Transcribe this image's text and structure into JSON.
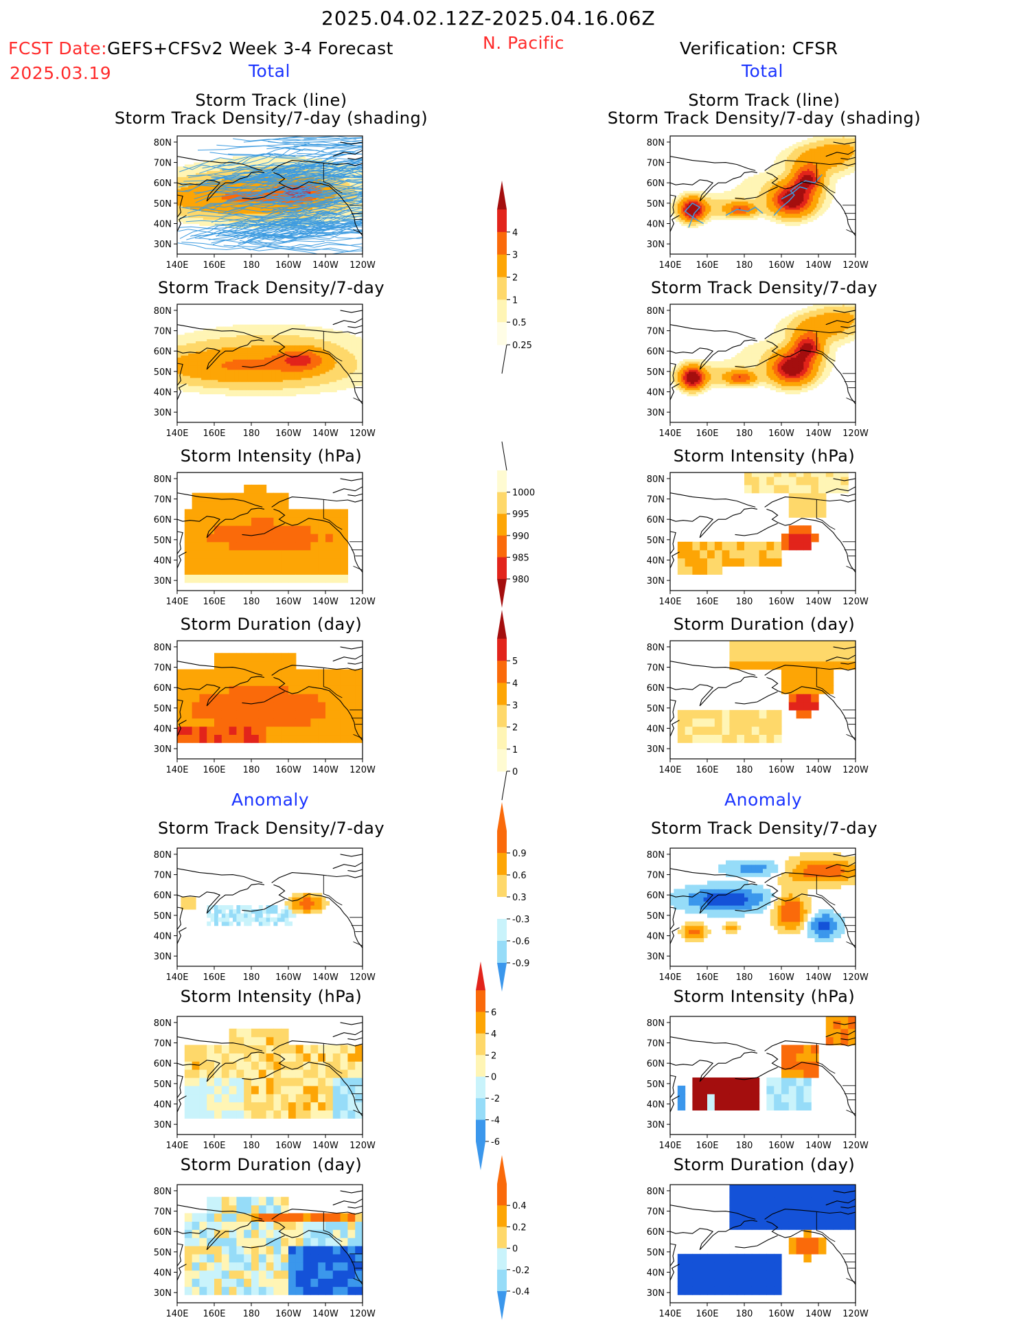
{
  "header": {
    "period": "2025.04.02.12Z-2025.04.16.06Z",
    "fcst_date_label": "FCST Date:",
    "fcst_date": "2025.03.19",
    "model": "GEFS+CFSv2 Week 3-4 Forecast",
    "region": "N. Pacific",
    "verification": "Verification: CFSR",
    "total_label": "Total",
    "anomaly_label": "Anomaly"
  },
  "panel_titles": {
    "track_line": "Storm Track (line)",
    "track_shading": "Storm Track Density/7-day (shading)",
    "density": "Storm Track Density/7-day",
    "intensity": "Storm Intensity (hPa)",
    "duration": "Storm Duration (day)"
  },
  "map_axes": {
    "lat_labels": [
      "80N",
      "70N",
      "60N",
      "50N",
      "40N",
      "30N"
    ],
    "lon_labels": [
      "140E",
      "160E",
      "180",
      "160W",
      "140W",
      "120W"
    ]
  },
  "colors": {
    "c1": "#fff5b5",
    "c2": "#fed86a",
    "c3": "#fda505",
    "c4": "#fa6a0a",
    "c5": "#e2241b",
    "c6": "#a40e0e",
    "b1": "#c9f3fb",
    "b2": "#96dcf8",
    "b3": "#3b97ec",
    "b4": "#1452d8",
    "track": "#3d9be0"
  },
  "chart_data": [
    {
      "type": "heatmap",
      "panel": "forecast-total-track-density",
      "title": "Storm Track (line)",
      "subtitle": "Storm Track Density/7-day (shading)",
      "lat_range": [
        "30N",
        "80N"
      ],
      "lon_range": [
        "140E",
        "120W"
      ]
    },
    {
      "type": "heatmap",
      "panel": "verification-total-track-density",
      "title": "Storm Track (line)",
      "subtitle": "Storm Track Density/7-day (shading)"
    },
    {
      "type": "heatmap",
      "panel": "forecast-total-density",
      "title": "Storm Track Density/7-day"
    },
    {
      "type": "heatmap",
      "panel": "verification-total-density",
      "title": "Storm Track Density/7-day"
    },
    {
      "type": "heatmap",
      "panel": "forecast-total-intensity",
      "title": "Storm Intensity (hPa)"
    },
    {
      "type": "heatmap",
      "panel": "verification-total-intensity",
      "title": "Storm Intensity (hPa)"
    },
    {
      "type": "heatmap",
      "panel": "forecast-total-duration",
      "title": "Storm Duration (day)"
    },
    {
      "type": "heatmap",
      "panel": "verification-total-duration",
      "title": "Storm Duration (day)"
    },
    {
      "type": "heatmap",
      "panel": "forecast-anomaly-density",
      "title": "Storm Track Density/7-day"
    },
    {
      "type": "heatmap",
      "panel": "verification-anomaly-density",
      "title": "Storm Track Density/7-day"
    },
    {
      "type": "heatmap",
      "panel": "forecast-anomaly-intensity",
      "title": "Storm Intensity (hPa)"
    },
    {
      "type": "heatmap",
      "panel": "verification-anomaly-intensity",
      "title": "Storm Intensity (hPa)"
    },
    {
      "type": "heatmap",
      "panel": "forecast-anomaly-duration",
      "title": "Storm Duration (day)"
    },
    {
      "type": "heatmap",
      "panel": "verification-anomaly-duration",
      "title": "Storm Duration (day)"
    }
  ],
  "colorbars": {
    "density_total": [
      "4",
      "3",
      "2",
      "1",
      "0.5",
      "0.25"
    ],
    "intensity_total": [
      "1000",
      "995",
      "990",
      "985",
      "980"
    ],
    "duration_total": [
      "5",
      "4",
      "3",
      "2",
      "1",
      "0"
    ],
    "density_anom": [
      "0.9",
      "0.6",
      "0.3",
      "-0.3",
      "-0.6",
      "-0.9"
    ],
    "intensity_anom": [
      "6",
      "4",
      "2",
      "0",
      "-2",
      "-4",
      "-6"
    ],
    "duration_anom": [
      "0.4",
      "0.2",
      "0",
      "-0.2",
      "-0.4"
    ]
  }
}
